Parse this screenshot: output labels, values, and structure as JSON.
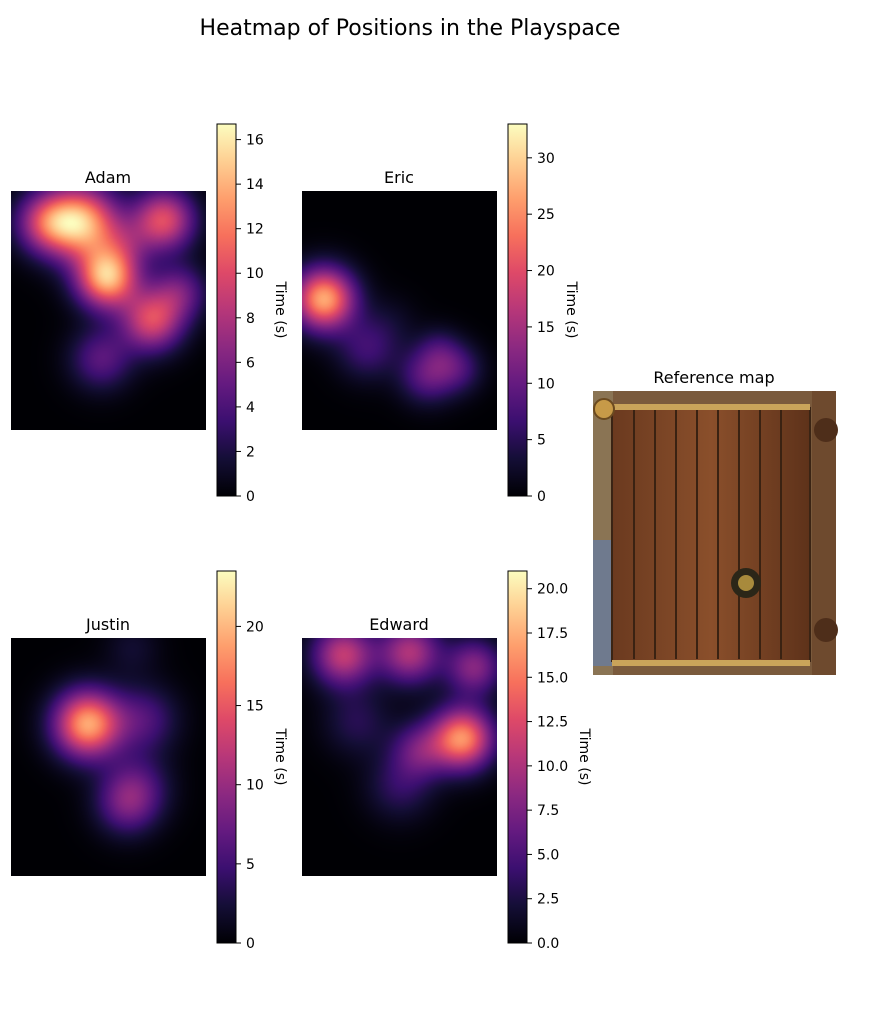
{
  "title": "Heatmap of Positions in the Playspace",
  "colormap": "magma",
  "colorbar_label": "Time (s)",
  "reference_title": "Reference map",
  "chart_data": [
    {
      "type": "heatmap",
      "title": "Adam",
      "colorbar": {
        "label": "Time (s)",
        "range": [
          0,
          16.7
        ],
        "ticks": [
          0,
          2,
          4,
          6,
          8,
          10,
          12,
          14,
          16
        ]
      },
      "hotspots": [
        {
          "x": 0.36,
          "y": 0.13,
          "value": 13.5,
          "spread": 0.13
        },
        {
          "x": 0.18,
          "y": 0.13,
          "value": 8,
          "spread": 0.11
        },
        {
          "x": 0.78,
          "y": 0.12,
          "value": 10,
          "spread": 0.11
        },
        {
          "x": 0.49,
          "y": 0.36,
          "value": 14,
          "spread": 0.11
        },
        {
          "x": 0.72,
          "y": 0.54,
          "value": 9.5,
          "spread": 0.11
        },
        {
          "x": 0.86,
          "y": 0.42,
          "value": 5,
          "spread": 0.1
        },
        {
          "x": 0.46,
          "y": 0.7,
          "value": 4.5,
          "spread": 0.11
        },
        {
          "x": 0.58,
          "y": 0.22,
          "value": 3,
          "spread": 0.1
        }
      ]
    },
    {
      "type": "heatmap",
      "title": "Eric",
      "colorbar": {
        "label": "Time (s)",
        "range": [
          0,
          33
        ],
        "ticks": [
          0,
          5,
          10,
          15,
          20,
          25,
          30
        ]
      },
      "hotspots": [
        {
          "x": 0.11,
          "y": 0.45,
          "value": 27,
          "spread": 0.11
        },
        {
          "x": 0.33,
          "y": 0.66,
          "value": 6.5,
          "spread": 0.11
        },
        {
          "x": 0.64,
          "y": 0.77,
          "value": 9,
          "spread": 0.1
        },
        {
          "x": 0.8,
          "y": 0.74,
          "value": 6.5,
          "spread": 0.09
        },
        {
          "x": 0.7,
          "y": 0.66,
          "value": 4.5,
          "spread": 0.08
        },
        {
          "x": 0.45,
          "y": 0.55,
          "value": 2,
          "spread": 0.1
        }
      ]
    },
    {
      "type": "heatmap",
      "title": "Justin",
      "colorbar": {
        "label": "Time (s)",
        "range": [
          0,
          23.5
        ],
        "ticks": [
          0,
          5,
          10,
          15,
          20
        ]
      },
      "hotspots": [
        {
          "x": 0.39,
          "y": 0.36,
          "value": 19,
          "spread": 0.12
        },
        {
          "x": 0.68,
          "y": 0.34,
          "value": 5.5,
          "spread": 0.12
        },
        {
          "x": 0.64,
          "y": 0.62,
          "value": 5,
          "spread": 0.12
        },
        {
          "x": 0.59,
          "y": 0.7,
          "value": 6,
          "spread": 0.11
        },
        {
          "x": 0.62,
          "y": 0.04,
          "value": 2,
          "spread": 0.1
        }
      ]
    },
    {
      "type": "heatmap",
      "title": "Edward",
      "colorbar": {
        "label": "Time (s)",
        "range": [
          0,
          21
        ],
        "ticks": [
          0.0,
          2.5,
          5.0,
          7.5,
          10.0,
          12.5,
          15.0,
          17.5,
          20.0
        ]
      },
      "hotspots": [
        {
          "x": 0.82,
          "y": 0.42,
          "value": 16,
          "spread": 0.11
        },
        {
          "x": 0.21,
          "y": 0.07,
          "value": 11,
          "spread": 0.11
        },
        {
          "x": 0.55,
          "y": 0.06,
          "value": 10,
          "spread": 0.11
        },
        {
          "x": 0.88,
          "y": 0.12,
          "value": 8,
          "spread": 0.1
        },
        {
          "x": 0.6,
          "y": 0.47,
          "value": 6,
          "spread": 0.1
        },
        {
          "x": 0.5,
          "y": 0.62,
          "value": 3.5,
          "spread": 0.12
        },
        {
          "x": 0.28,
          "y": 0.35,
          "value": 3,
          "spread": 0.12
        }
      ]
    }
  ]
}
